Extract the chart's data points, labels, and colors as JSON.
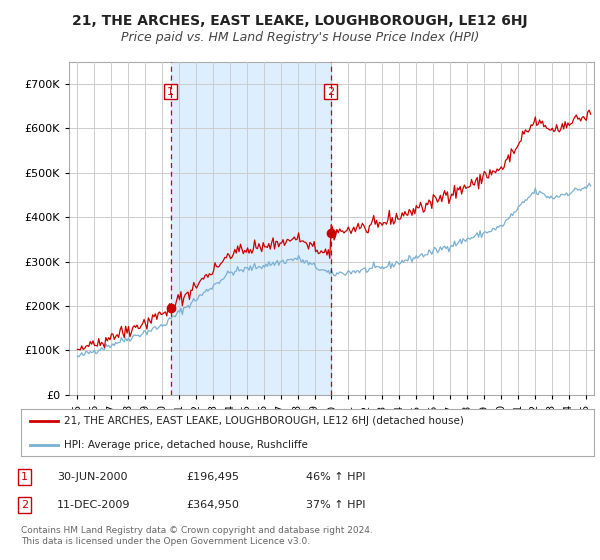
{
  "title": "21, THE ARCHES, EAST LEAKE, LOUGHBOROUGH, LE12 6HJ",
  "subtitle": "Price paid vs. HM Land Registry's House Price Index (HPI)",
  "ylim": [
    0,
    750000
  ],
  "yticks": [
    0,
    100000,
    200000,
    300000,
    400000,
    500000,
    600000,
    700000
  ],
  "xlim_start": 1994.5,
  "xlim_end": 2025.5,
  "sale1_x": 2000.5,
  "sale1_y": 196495,
  "sale2_x": 2009.95,
  "sale2_y": 364950,
  "line1_color": "#cc0000",
  "line2_color": "#7ab0d4",
  "shade_color": "#ddeeff",
  "vline_color": "#cc0000",
  "background_color": "#ffffff",
  "grid_color": "#cccccc",
  "title_fontsize": 10,
  "subtitle_fontsize": 9,
  "legend_label1": "21, THE ARCHES, EAST LEAKE, LOUGHBOROUGH, LE12 6HJ (detached house)",
  "legend_label2": "HPI: Average price, detached house, Rushcliffe",
  "sale1_label": "1",
  "sale1_date": "30-JUN-2000",
  "sale1_price": "£196,495",
  "sale1_hpi": "46% ↑ HPI",
  "sale2_label": "2",
  "sale2_date": "11-DEC-2009",
  "sale2_price": "£364,950",
  "sale2_hpi": "37% ↑ HPI",
  "footer": "Contains HM Land Registry data © Crown copyright and database right 2024.\nThis data is licensed under the Open Government Licence v3.0."
}
